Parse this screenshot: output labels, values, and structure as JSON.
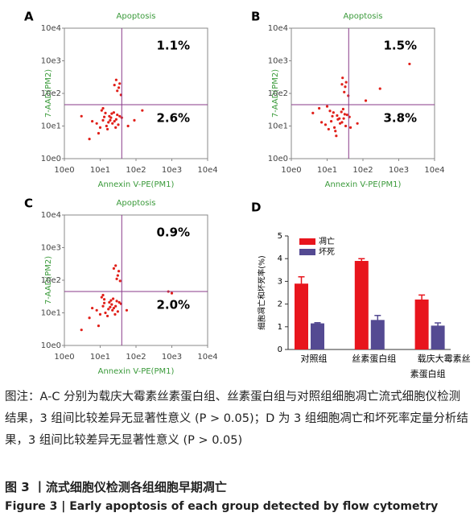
{
  "chart_data": [
    {
      "type": "scatter",
      "label": "A",
      "title": "Apoptosis",
      "x_label": "Annexin V-PE(PM1)",
      "y_label": "7-AAD(PM2)",
      "log": true,
      "color": "#e0201a",
      "gate_color": "#8a3a8a",
      "xlim": [
        1,
        10000
      ],
      "ylim": [
        1,
        10000
      ],
      "xticks": [
        {
          "value": 1,
          "label": "10e0"
        },
        {
          "value": 10,
          "label": "10e1"
        },
        {
          "value": 100,
          "label": "10e2"
        },
        {
          "value": 1000,
          "label": "10e3"
        },
        {
          "value": 10000,
          "label": "10e4"
        }
      ],
      "yticks": [
        {
          "value": 1,
          "label": "10e0"
        },
        {
          "value": 10,
          "label": "10e1"
        },
        {
          "value": 100,
          "label": "10e2"
        },
        {
          "value": 1000,
          "label": "10e3"
        },
        {
          "value": 10000,
          "label": "10e4"
        }
      ],
      "gate_x": 40,
      "gate_y": 45,
      "upper_right": "1.1%",
      "lower_right": "2.6%",
      "x": [
        8,
        12,
        15,
        18,
        20,
        25,
        30,
        10,
        14,
        22,
        28,
        35,
        6,
        40,
        16,
        11,
        24,
        32,
        19,
        13,
        30,
        35,
        28,
        38,
        33,
        25,
        3,
        60,
        90,
        150,
        9,
        17,
        21,
        27,
        12,
        5
      ],
      "y": [
        12,
        15,
        10,
        20,
        18,
        14,
        22,
        9,
        25,
        12,
        16,
        20,
        14,
        18,
        8,
        30,
        26,
        11,
        15,
        19,
        120,
        200,
        260,
        90,
        150,
        180,
        20,
        10,
        15,
        30,
        6,
        13,
        24,
        9,
        35,
        4
      ]
    },
    {
      "type": "scatter",
      "label": "B",
      "title": "Apoptosis",
      "x_label": "Annexin V-PE(PM1)",
      "y_label": "7-AAD(PM2)",
      "log": true,
      "color": "#e0201a",
      "gate_color": "#8a3a8a",
      "xlim": [
        1,
        10000
      ],
      "ylim": [
        1,
        10000
      ],
      "xticks": [
        {
          "value": 1,
          "label": "10e0"
        },
        {
          "value": 10,
          "label": "10e1"
        },
        {
          "value": 100,
          "label": "10e2"
        },
        {
          "value": 1000,
          "label": "10e3"
        },
        {
          "value": 10000,
          "label": "10e4"
        }
      ],
      "yticks": [
        {
          "value": 1,
          "label": "10e0"
        },
        {
          "value": 10,
          "label": "10e1"
        },
        {
          "value": 100,
          "label": "10e2"
        },
        {
          "value": 1000,
          "label": "10e3"
        },
        {
          "value": 10000,
          "label": "10e4"
        }
      ],
      "gate_x": 40,
      "gate_y": 45,
      "upper_right": "1.5%",
      "lower_right": "3.8%",
      "x": [
        9,
        13,
        16,
        19,
        22,
        26,
        31,
        11,
        15,
        23,
        29,
        36,
        7,
        42,
        17,
        12,
        25,
        33,
        20,
        14,
        30,
        34,
        27,
        39,
        32,
        26,
        4,
        70,
        120,
        2000,
        6,
        18,
        300,
        28,
        45,
        10
      ],
      "y": [
        11,
        14,
        9,
        21,
        17,
        13,
        23,
        8,
        26,
        12,
        17,
        22,
        13,
        19,
        7,
        29,
        27,
        10,
        16,
        20,
        110,
        220,
        300,
        85,
        160,
        190,
        25,
        12,
        60,
        800,
        35,
        5,
        140,
        33,
        9,
        40
      ]
    },
    {
      "type": "scatter",
      "label": "C",
      "title": "Apoptosis",
      "x_label": "Annexin V-PE(PM1)",
      "y_label": "7-AAD(PM2)",
      "log": true,
      "color": "#e0201a",
      "gate_color": "#8a3a8a",
      "xlim": [
        1,
        10000
      ],
      "ylim": [
        1,
        10000
      ],
      "xticks": [
        {
          "value": 1,
          "label": "10e0"
        },
        {
          "value": 10,
          "label": "10e1"
        },
        {
          "value": 100,
          "label": "10e2"
        },
        {
          "value": 1000,
          "label": "10e3"
        },
        {
          "value": 10000,
          "label": "10e4"
        }
      ],
      "yticks": [
        {
          "value": 1,
          "label": "10e0"
        },
        {
          "value": 10,
          "label": "10e1"
        },
        {
          "value": 100,
          "label": "10e2"
        },
        {
          "value": 1000,
          "label": "10e3"
        },
        {
          "value": 10000,
          "label": "10e4"
        }
      ],
      "gate_x": 40,
      "gate_y": 45,
      "upper_right": "0.9%",
      "lower_right": "2.0%",
      "x": [
        8,
        12,
        14,
        18,
        21,
        24,
        29,
        10,
        13,
        22,
        27,
        34,
        6,
        38,
        16,
        11,
        23,
        31,
        19,
        13,
        29,
        33,
        27,
        36,
        31,
        24,
        3,
        55,
        800,
        1000,
        5,
        17,
        20,
        26,
        12,
        9
      ],
      "y": [
        12,
        16,
        10,
        21,
        18,
        14,
        23,
        9,
        26,
        12,
        16,
        21,
        14,
        19,
        8,
        30,
        27,
        11,
        15,
        20,
        110,
        190,
        280,
        95,
        140,
        230,
        3,
        12,
        45,
        40,
        7,
        13,
        24,
        9,
        35,
        4
      ]
    },
    {
      "type": "bar",
      "label": "D",
      "y_label": "细胞凋亡和坏死率(%)",
      "categories": [
        "对照组",
        "丝素蛋白组",
        "载庆大霉素丝素蛋白组"
      ],
      "ylim": [
        0,
        5
      ],
      "yticks": [
        0,
        1,
        2,
        3,
        4,
        5
      ],
      "series": [
        {
          "name": "凋亡",
          "color": "#e8151d",
          "values": [
            2.9,
            3.9,
            2.2
          ],
          "errors": [
            0.3,
            0.1,
            0.2
          ]
        },
        {
          "name": "坏死",
          "color": "#544a92",
          "values": [
            1.15,
            1.3,
            1.05
          ],
          "errors": [
            0.03,
            0.2,
            0.12
          ]
        }
      ]
    }
  ],
  "caption": {
    "note": "图注：A-C 分别为载庆大霉素丝素蛋白组、丝素蛋白组与对照组细胞凋亡流式细胞仪检测结果，3 组间比较差异无显著性意义 (P > 0.05)；D 为 3 组细胞凋亡和坏死率定量分析结果，3 组间比较差异无显著性意义 (P > 0.05)",
    "figure_cn": "图 3 丨流式细胞仪检测各组细胞早期凋亡",
    "figure_en": "Figure 3 | Early apoptosis of each group detected by flow cytometry"
  }
}
